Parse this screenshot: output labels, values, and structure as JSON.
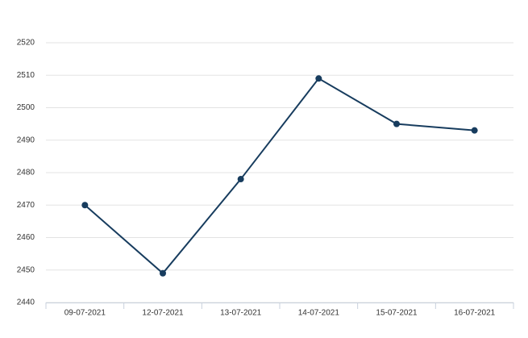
{
  "chart_data": {
    "type": "line",
    "categories": [
      "09-07-2021",
      "12-07-2021",
      "13-07-2021",
      "14-07-2021",
      "15-07-2021",
      "16-07-2021"
    ],
    "values": [
      2470,
      2449,
      2478,
      2509,
      2495,
      2493
    ],
    "color": "#173c5e",
    "ylim": [
      2440,
      2520
    ],
    "yticks": [
      2440,
      2450,
      2460,
      2470,
      2480,
      2490,
      2500,
      2510,
      2520
    ],
    "grid": true
  }
}
